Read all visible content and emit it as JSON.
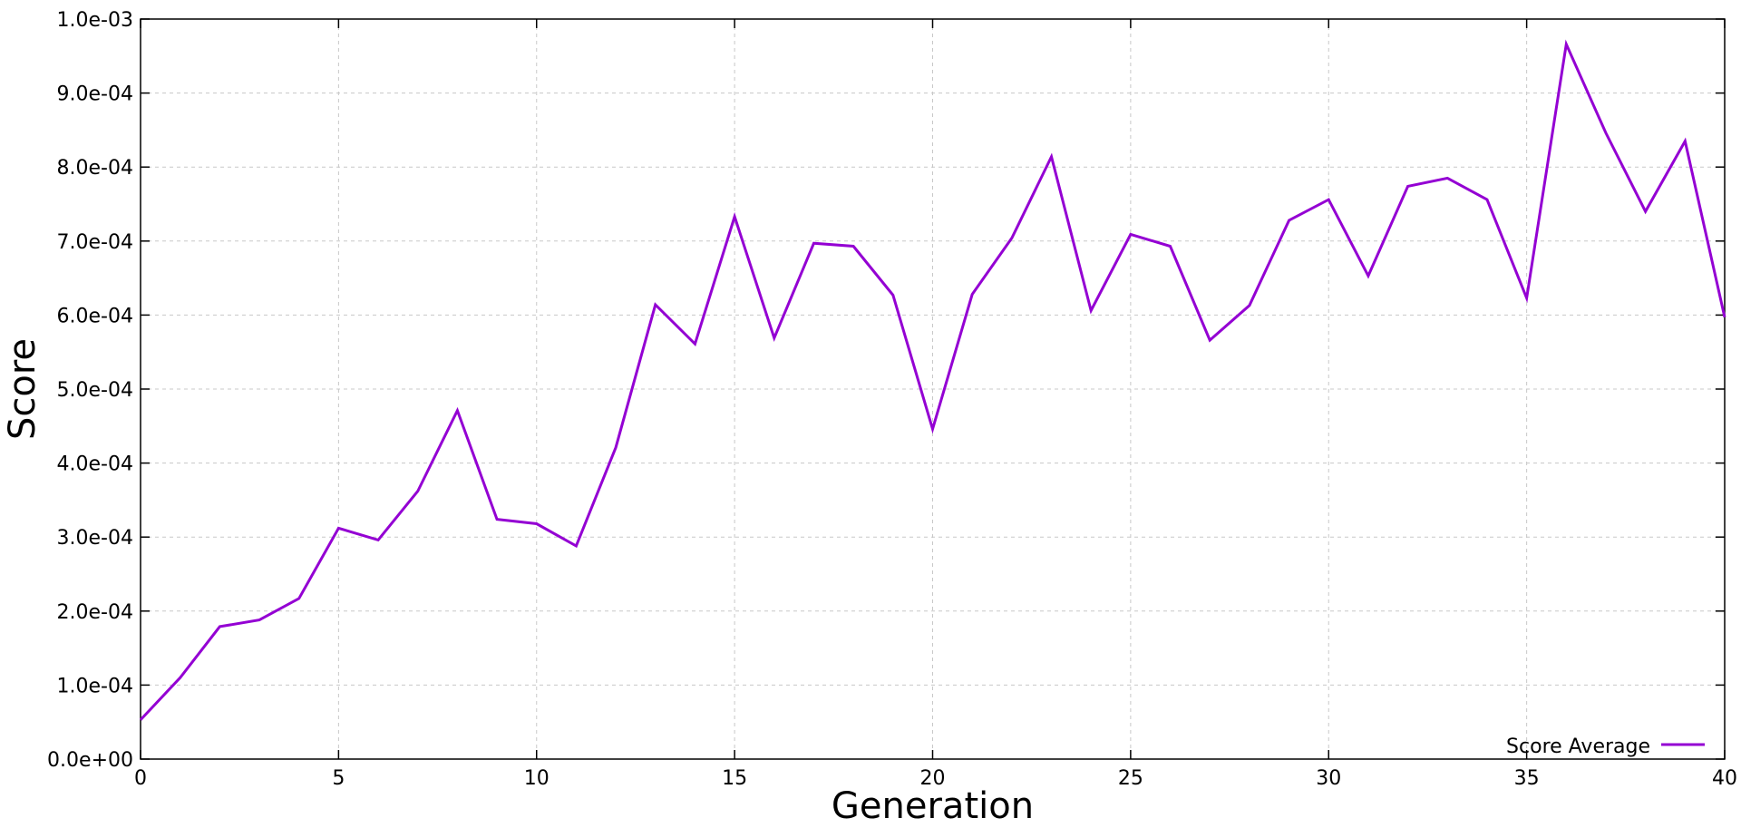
{
  "chart_data": {
    "type": "line",
    "xlabel": "Generation",
    "ylabel": "Score",
    "xlim": [
      0,
      40
    ],
    "ylim": [
      0,
      0.001
    ],
    "x_ticks": [
      0,
      5,
      10,
      15,
      20,
      25,
      30,
      35,
      40
    ],
    "x_tick_labels": [
      "0",
      "5",
      "10",
      "15",
      "20",
      "25",
      "30",
      "35",
      "40"
    ],
    "y_ticks": [
      0,
      0.0001,
      0.0002,
      0.0003,
      0.0004,
      0.0005,
      0.0006,
      0.0007,
      0.0008,
      0.0009,
      0.001
    ],
    "y_tick_labels": [
      "0.0e+00",
      "1.0e-04",
      "2.0e-04",
      "3.0e-04",
      "4.0e-04",
      "5.0e-04",
      "6.0e-04",
      "7.0e-04",
      "8.0e-04",
      "9.0e-04",
      "1.0e-03"
    ],
    "grid": true,
    "legend_position": "bottom-right",
    "series": [
      {
        "name": "Score Average",
        "color": "#9400d3",
        "x": [
          0,
          1,
          2,
          3,
          4,
          5,
          6,
          7,
          8,
          9,
          10,
          11,
          12,
          13,
          14,
          15,
          16,
          17,
          18,
          19,
          20,
          21,
          22,
          23,
          24,
          25,
          26,
          27,
          28,
          29,
          30,
          31,
          32,
          33,
          34,
          35,
          36,
          37,
          38,
          39,
          40
        ],
        "values": [
          5.3e-05,
          0.00011,
          0.000179,
          0.000188,
          0.000217,
          0.000312,
          0.000296,
          0.000362,
          0.000471,
          0.000324,
          0.000318,
          0.000288,
          0.000421,
          0.000614,
          0.000561,
          0.000733,
          0.000569,
          0.000697,
          0.000693,
          0.000627,
          0.000446,
          0.000628,
          0.000704,
          0.000814,
          0.000606,
          0.000709,
          0.000693,
          0.000566,
          0.000613,
          0.000728,
          0.000756,
          0.000653,
          0.000774,
          0.000785,
          0.000756,
          0.000623,
          0.000966,
          0.000846,
          0.00074,
          0.000835,
          0.000597
        ]
      }
    ]
  }
}
